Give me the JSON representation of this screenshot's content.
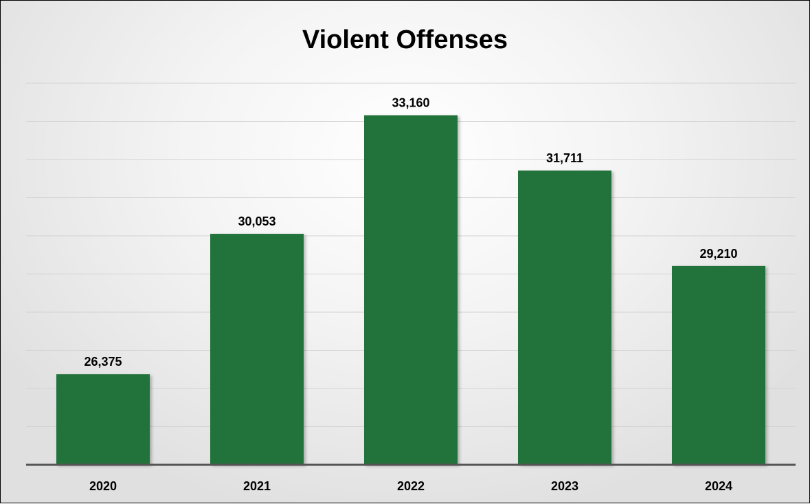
{
  "chart_data": {
    "type": "bar",
    "title": "Violent Offenses",
    "categories": [
      "2020",
      "2021",
      "2022",
      "2023",
      "2024"
    ],
    "values": [
      26375,
      30053,
      33160,
      31711,
      29210
    ],
    "value_labels": [
      "26,375",
      "30,053",
      "33,160",
      "31,711",
      "29,210"
    ],
    "xlabel": "",
    "ylabel": "",
    "ylim": [
      24000,
      34000
    ],
    "grid": true,
    "legend": "none",
    "bar_color": "#23733A"
  }
}
